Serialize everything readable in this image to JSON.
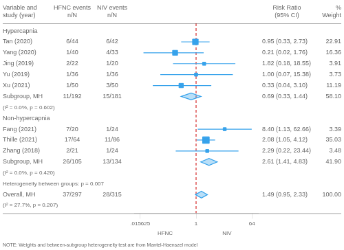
{
  "chart_data": {
    "type": "forest",
    "log": "x",
    "xlim": [
      0.01,
      100
    ],
    "xticks": [
      {
        "value": 0.015625,
        "label": ".015625"
      },
      1,
      64
    ],
    "grid": false,
    "color": "#36a2eb",
    "columns": [
      [
        "Variable and",
        "study (year)"
      ],
      [
        "HFNC events",
        "n/N"
      ],
      [
        "NIV events",
        "n/N"
      ],
      [
        "Risk Ratio",
        "(95% CI)"
      ],
      [
        "%",
        "Weight"
      ]
    ],
    "reference_line": {
      "x": 1,
      "color": "#cc0000",
      "line_style": "dashed"
    },
    "direction_labels": [
      "HFNC",
      "NIV"
    ],
    "groups": [
      {
        "name": "Hypercapnia",
        "studies": [
          {
            "study": "Tan (2020)",
            "hfnc": "6/44",
            "niv": "6/42",
            "rr": 0.95,
            "ci_lo": 0.33,
            "ci_hi": 2.73,
            "weight": 22.91,
            "rr_text": "0.95 (0.33, 2.73)",
            "wt_text": "22.91"
          },
          {
            "study": "Yang (2020)",
            "hfnc": "1/40",
            "niv": "4/33",
            "rr": 0.21,
            "ci_lo": 0.02,
            "ci_hi": 1.76,
            "weight": 16.36,
            "rr_text": "0.21 (0.02, 1.76)",
            "wt_text": "16.36"
          },
          {
            "study": "Jing (2019)",
            "hfnc": "2/22",
            "niv": "1/20",
            "rr": 1.82,
            "ci_lo": 0.18,
            "ci_hi": 18.55,
            "weight": 3.91,
            "rr_text": "1.82 (0.18, 18.55)",
            "wt_text": "3.91"
          },
          {
            "study": "Yu (2019)",
            "hfnc": "1/36",
            "niv": "1/36",
            "rr": 1.0,
            "ci_lo": 0.07,
            "ci_hi": 15.38,
            "weight": 3.73,
            "rr_text": "1.00 (0.07, 15.38)",
            "wt_text": "3.73"
          },
          {
            "study": "Xu (2021)",
            "hfnc": "1/50",
            "niv": "3/50",
            "rr": 0.33,
            "ci_lo": 0.04,
            "ci_hi": 3.1,
            "weight": 11.19,
            "rr_text": "0.33 (0.04, 3.10)",
            "wt_text": "11.19"
          }
        ],
        "subgroup": {
          "study": "Subgroup, MH",
          "hfnc": "11/192",
          "niv": "15/181",
          "rr": 0.69,
          "ci_lo": 0.33,
          "ci_hi": 1.44,
          "rr_text": "0.69 (0.33, 1.44)",
          "wt_text": "58.10"
        },
        "heterogeneity": "(I² = 0.0%, p = 0.602)"
      },
      {
        "name": "Non-hypercapnia",
        "studies": [
          {
            "study": "Fang (2021)",
            "hfnc": "7/20",
            "niv": "1/24",
            "rr": 8.4,
            "ci_lo": 1.13,
            "ci_hi": 62.66,
            "weight": 3.39,
            "rr_text": "8.40 (1.13, 62.66)",
            "wt_text": "3.39"
          },
          {
            "study": "Thille (2021)",
            "hfnc": "17/64",
            "niv": "11/86",
            "rr": 2.08,
            "ci_lo": 1.05,
            "ci_hi": 4.12,
            "weight": 35.03,
            "rr_text": "2.08 (1.05, 4.12)",
            "wt_text": "35.03"
          },
          {
            "study": "Zhang (2018)",
            "hfnc": "2/21",
            "niv": "1/24",
            "rr": 2.29,
            "ci_lo": 0.22,
            "ci_hi": 23.44,
            "weight": 3.48,
            "rr_text": "2.29 (0.22, 23.44)",
            "wt_text": "3.48"
          }
        ],
        "subgroup": {
          "study": "Subgroup, MH",
          "hfnc": "26/105",
          "niv": "13/134",
          "rr": 2.61,
          "ci_lo": 1.41,
          "ci_hi": 4.83,
          "rr_text": "2.61 (1.41, 4.83)",
          "wt_text": "41.90"
        },
        "heterogeneity": "(I² = 0.0%, p = 0.420)"
      }
    ],
    "between_groups": "Heterogeneity between groups: p = 0.007",
    "overall": {
      "study": "Overall, MH",
      "hfnc": "37/297",
      "niv": "28/315",
      "rr": 1.49,
      "ci_lo": 0.95,
      "ci_hi": 2.33,
      "rr_text": "1.49 (0.95, 2.33)",
      "wt_text": "100.00"
    },
    "overall_heterogeneity": "(I² = 27.7%, p = 0.207)",
    "note": "NOTE: Weights and between-subgroup heterogeneity test are from Mantel-Haenszel model"
  }
}
